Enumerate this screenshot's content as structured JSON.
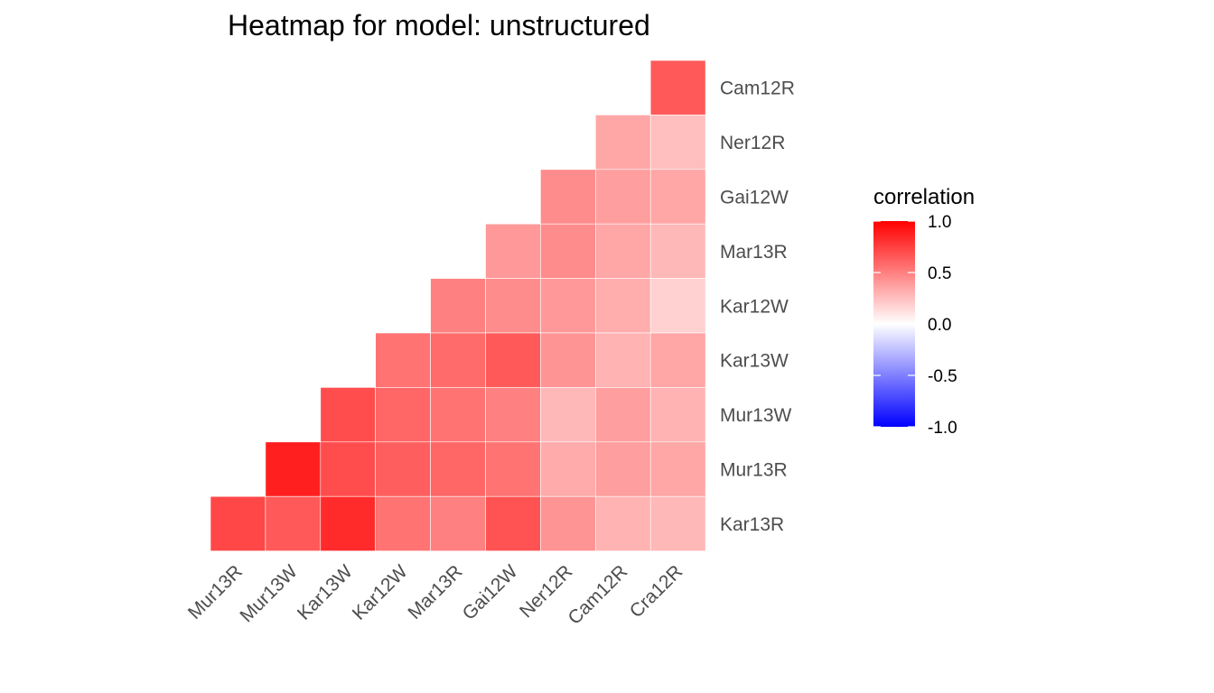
{
  "chart_data": {
    "type": "heatmap",
    "title": "Heatmap for model: unstructured",
    "xlabel": "",
    "ylabel": "",
    "x_categories": [
      "Mur13R",
      "Mur13W",
      "Kar13W",
      "Kar12W",
      "Mar13R",
      "Gai12W",
      "Ner12R",
      "Cam12R",
      "Cra12R"
    ],
    "y_categories": [
      "Kar13R",
      "Mur13R",
      "Mur13W",
      "Kar13W",
      "Kar12W",
      "Mar13R",
      "Gai12W",
      "Ner12R",
      "Cam12R"
    ],
    "rows": [
      {
        "y": "Cam12R",
        "values": [
          null,
          null,
          null,
          null,
          null,
          null,
          null,
          null,
          0.65
        ]
      },
      {
        "y": "Ner12R",
        "values": [
          null,
          null,
          null,
          null,
          null,
          null,
          null,
          0.35,
          0.25
        ]
      },
      {
        "y": "Gai12W",
        "values": [
          null,
          null,
          null,
          null,
          null,
          null,
          0.45,
          0.38,
          0.35
        ]
      },
      {
        "y": "Mar13R",
        "values": [
          null,
          null,
          null,
          null,
          null,
          0.4,
          0.45,
          0.35,
          0.28
        ]
      },
      {
        "y": "Kar12W",
        "values": [
          null,
          null,
          null,
          null,
          0.5,
          0.45,
          0.4,
          0.32,
          0.18
        ]
      },
      {
        "y": "Kar13W",
        "values": [
          null,
          null,
          null,
          0.55,
          0.58,
          0.65,
          0.42,
          0.3,
          0.35
        ]
      },
      {
        "y": "Mur13W",
        "values": [
          null,
          null,
          0.7,
          0.6,
          0.55,
          0.5,
          0.28,
          0.38,
          0.3
        ]
      },
      {
        "y": "Mur13R",
        "values": [
          null,
          0.88,
          0.7,
          0.63,
          0.6,
          0.55,
          0.33,
          0.38,
          0.35
        ]
      },
      {
        "y": "Kar13R",
        "values": [
          0.72,
          0.65,
          0.83,
          0.55,
          0.5,
          0.68,
          0.42,
          0.3,
          0.28
        ]
      }
    ],
    "color_scale": {
      "low": "#0000ff",
      "mid": "#ffffff",
      "high": "#ff0000",
      "limits": [
        -1,
        1
      ]
    },
    "legend": {
      "title": "correlation",
      "ticks": [
        "1.0",
        "0.5",
        "0.0",
        "-0.5",
        "-1.0"
      ],
      "tick_values": [
        1.0,
        0.5,
        0.0,
        -0.5,
        -1.0
      ],
      "placement": "right"
    },
    "grid": false
  }
}
